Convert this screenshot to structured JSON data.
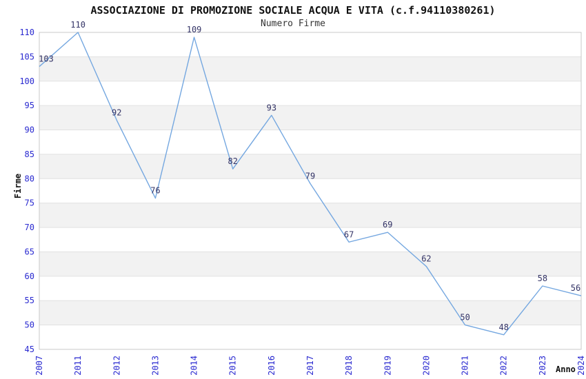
{
  "title": "ASSOCIAZIONE DI PROMOZIONE SOCIALE ACQUA E VITA (c.f.94110380261)",
  "subtitle": "Numero Firme",
  "chart_data": {
    "type": "line",
    "categories": [
      "2007",
      "2011",
      "2012",
      "2013",
      "2014",
      "2015",
      "2016",
      "2017",
      "2018",
      "2019",
      "2020",
      "2021",
      "2022",
      "2023",
      "2024"
    ],
    "values": [
      103,
      110,
      92,
      76,
      109,
      82,
      93,
      79,
      67,
      69,
      62,
      50,
      48,
      58,
      56
    ],
    "title": "Numero Firme",
    "xlabel": "Anno",
    "ylabel": "Firme",
    "ylim": [
      45,
      110
    ],
    "ytick_step": 5,
    "grid": true,
    "legend": "none",
    "data_labels": true,
    "colors": {
      "line": "#74a7e0",
      "data_label": "#333366",
      "tick_label": "#2929d0",
      "band_fill": "#f2f2f2",
      "gridline": "#e1e1e1",
      "plot_border": "#c9c9c9",
      "background": "#ffffff"
    }
  }
}
